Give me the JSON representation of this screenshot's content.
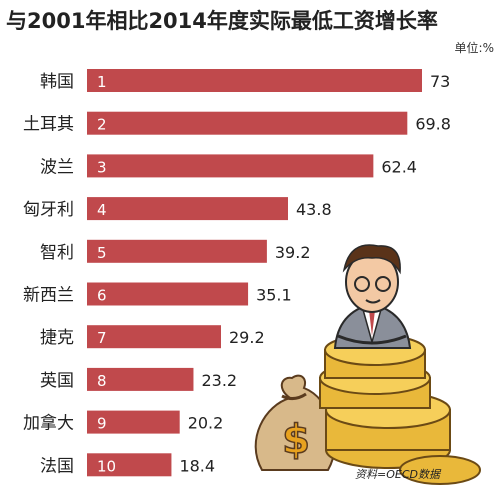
{
  "chart_data": {
    "type": "bar",
    "orientation": "horizontal",
    "title": "与2001年相比2014年度实际最低工资增长率",
    "unit": "单位:%",
    "categories": [
      "韩国",
      "土耳其",
      "波兰",
      "匈牙利",
      "智利",
      "新西兰",
      "捷克",
      "英国",
      "加拿大",
      "法国"
    ],
    "ranks": [
      "1",
      "2",
      "3",
      "4",
      "5",
      "6",
      "7",
      "8",
      "9",
      "10"
    ],
    "values": [
      73,
      69.8,
      62.4,
      43.8,
      39.2,
      35.1,
      29.2,
      23.2,
      20.2,
      18.4
    ],
    "value_labels": [
      "73",
      "69.8",
      "62.4",
      "43.8",
      "39.2",
      "35.1",
      "29.2",
      "23.2",
      "20.2",
      "18.4"
    ],
    "bar_color": "#c0494c",
    "source": "资料=OECD数据"
  },
  "illustration": {
    "icon": "businessman-on-coins-with-money-bag",
    "bag_symbol": "$"
  }
}
